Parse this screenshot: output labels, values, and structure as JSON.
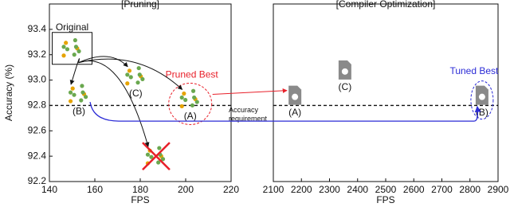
{
  "chart_data": [
    {
      "type": "scatter",
      "title": "[Pruning]",
      "xlabel": "FPS",
      "ylabel": "Accuracy (%)",
      "xlim": [
        140,
        220
      ],
      "ylim": [
        92.2,
        93.6
      ],
      "xticks": [
        140,
        160,
        180,
        200,
        220
      ],
      "yticks": [
        92.2,
        92.4,
        92.6,
        {
          "value": 92.8,
          "label": "92.8"
        },
        {
          "value": 93,
          "label": "93.0"
        },
        93.2,
        93.4
      ],
      "threshold": 92.8,
      "points": [
        {
          "label": "Original",
          "x": 150,
          "y": 93.25
        },
        {
          "label": "(B)",
          "x": 153,
          "y": 92.89
        },
        {
          "label": "(C)",
          "x": 178,
          "y": 93.03
        },
        {
          "label": "(A)",
          "x": 202,
          "y": 92.85,
          "highlight": "Pruned Best",
          "highlight_color": "#e8202a"
        },
        {
          "x": 187,
          "y": 92.4,
          "crossed": true
        }
      ]
    },
    {
      "type": "scatter",
      "title": "[Compiler Optimization]",
      "xlabel": "FPS",
      "xlim": [
        2100,
        2900
      ],
      "ylim": [
        92.2,
        93.6
      ],
      "xticks": [
        2100,
        2200,
        2300,
        2400,
        2500,
        2600,
        2700,
        2800,
        2900
      ],
      "threshold": 92.8,
      "threshold_label": [
        "Accuracy",
        "requirement"
      ],
      "points": [
        {
          "label": "(A)",
          "x": 2177,
          "y": 92.88
        },
        {
          "label": "(C)",
          "x": 2355,
          "y": 93.08
        },
        {
          "label": "(B)",
          "x": 2843,
          "y": 92.88,
          "highlight": "Tuned Best",
          "highlight_color": "#2b2bd6"
        }
      ]
    }
  ]
}
